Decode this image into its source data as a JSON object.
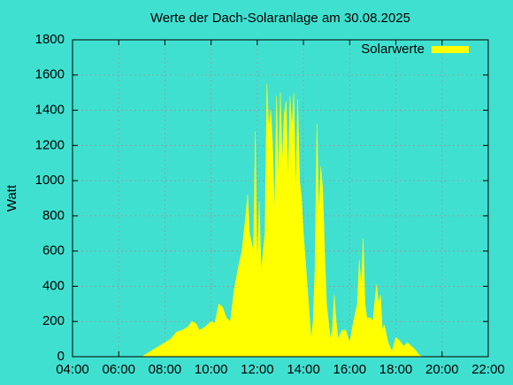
{
  "chart_data": {
    "type": "area",
    "title": "Werte der Dach-Solaranlage am 30.08.2025",
    "ylabel": "Watt",
    "x": [
      "07:00",
      "07:15",
      "07:30",
      "07:45",
      "08:00",
      "08:15",
      "08:30",
      "08:45",
      "09:00",
      "09:10",
      "09:20",
      "09:30",
      "09:45",
      "10:00",
      "10:10",
      "10:20",
      "10:30",
      "10:40",
      "10:50",
      "11:00",
      "11:10",
      "11:20",
      "11:30",
      "11:35",
      "11:40",
      "11:50",
      "11:55",
      "12:00",
      "12:05",
      "12:10",
      "12:20",
      "12:25",
      "12:30",
      "12:35",
      "12:40",
      "12:45",
      "12:50",
      "12:55",
      "13:00",
      "13:05",
      "13:10",
      "13:15",
      "13:20",
      "13:25",
      "13:30",
      "13:35",
      "13:40",
      "13:45",
      "13:50",
      "13:55",
      "14:00",
      "14:10",
      "14:20",
      "14:25",
      "14:30",
      "14:35",
      "14:40",
      "14:45",
      "14:50",
      "14:55",
      "15:00",
      "15:10",
      "15:15",
      "15:20",
      "15:25",
      "15:30",
      "15:40",
      "15:50",
      "16:00",
      "16:10",
      "16:20",
      "16:25",
      "16:30",
      "16:35",
      "16:40",
      "16:45",
      "16:55",
      "17:00",
      "17:10",
      "17:15",
      "17:20",
      "17:25",
      "17:30",
      "17:40",
      "17:50",
      "18:00",
      "18:10",
      "18:20",
      "18:30",
      "18:40",
      "18:50",
      "19:00",
      "19:10"
    ],
    "series": [
      {
        "name": "Solarwerte",
        "color": "#ffff00",
        "values": [
          0,
          20,
          40,
          60,
          80,
          100,
          140,
          150,
          170,
          200,
          190,
          150,
          170,
          200,
          190,
          300,
          280,
          220,
          200,
          380,
          500,
          600,
          800,
          920,
          700,
          600,
          1280,
          500,
          880,
          480,
          700,
          1550,
          1300,
          1400,
          1200,
          800,
          1480,
          1000,
          1500,
          1100,
          1380,
          1450,
          1000,
          1480,
          1300,
          1500,
          900,
          1460,
          1000,
          900,
          700,
          400,
          100,
          200,
          500,
          1320,
          800,
          1080,
          950,
          600,
          300,
          100,
          150,
          350,
          200,
          100,
          150,
          150,
          80,
          200,
          300,
          550,
          400,
          670,
          300,
          220,
          220,
          200,
          410,
          300,
          350,
          150,
          180,
          80,
          30,
          110,
          90,
          60,
          80,
          60,
          40,
          10,
          0
        ]
      }
    ],
    "xlim": [
      "04:00",
      "22:00"
    ],
    "xticks": [
      "04:00",
      "06:00",
      "08:00",
      "10:00",
      "12:00",
      "14:00",
      "16:00",
      "18:00",
      "20:00",
      "22:00"
    ],
    "ylim": [
      0,
      1800
    ],
    "yticks": [
      0,
      200,
      400,
      600,
      800,
      1000,
      1200,
      1400,
      1600,
      1800
    ],
    "grid": true,
    "legend": "top-right"
  }
}
